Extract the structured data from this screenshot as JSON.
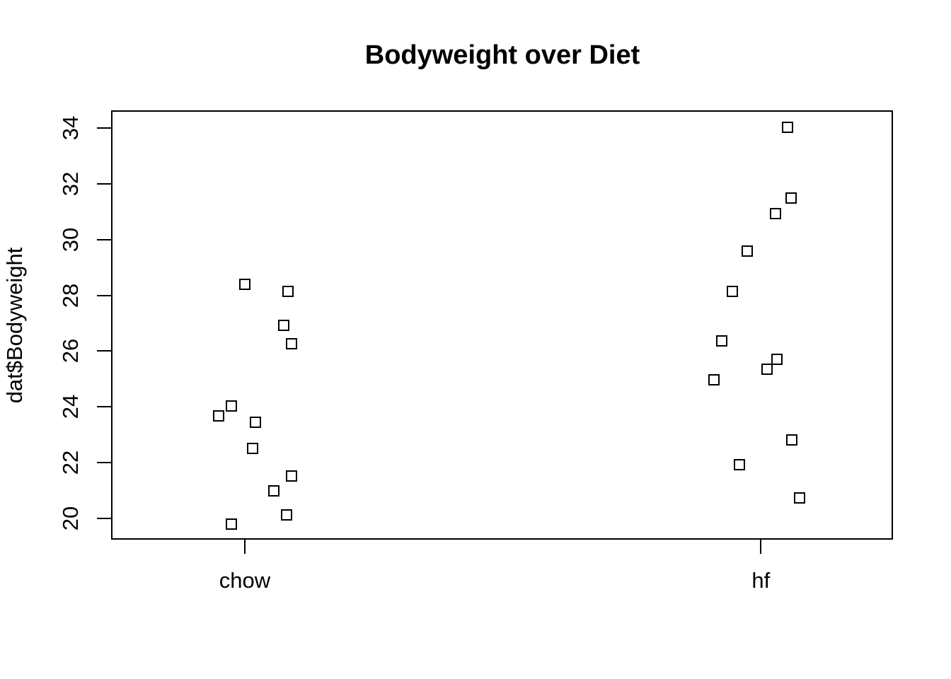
{
  "title": "Bodyweight over Diet",
  "colors": {
    "background": "#ffffff",
    "foreground": "#000000"
  },
  "chart_data": {
    "type": "scatter",
    "subtype": "stripchart-vertical-jitter",
    "title": "Bodyweight over Diet",
    "xlabel": "",
    "ylabel": "dat$Bodyweight",
    "categories": [
      "chow",
      "hf"
    ],
    "category_positions": [
      1,
      2
    ],
    "y_ticks": [
      20,
      22,
      24,
      26,
      28,
      30,
      32,
      34
    ],
    "xlim": [
      0.741,
      2.256
    ],
    "ylim": [
      19.23,
      34.64
    ],
    "grid": false,
    "legend": null,
    "marker": "open-square",
    "marker_color": "#000000",
    "series": [
      {
        "name": "chow",
        "position": 1,
        "values": [
          19.79,
          20.11,
          20.97,
          21.51,
          22.51,
          23.45,
          23.68,
          24.04,
          26.25,
          26.91,
          28.14,
          28.4
        ],
        "points": [
          {
            "y": 19.79,
            "jx": -0.0266
          },
          {
            "y": 20.11,
            "jx": 0.0812
          },
          {
            "y": 20.97,
            "jx": 0.0561
          },
          {
            "y": 21.51,
            "jx": 0.0908
          },
          {
            "y": 22.51,
            "jx": 0.0155
          },
          {
            "y": 23.45,
            "jx": 0.021
          },
          {
            "y": 23.68,
            "jx": -0.0507
          },
          {
            "y": 24.04,
            "jx": -0.026
          },
          {
            "y": 26.25,
            "jx": 0.0904
          },
          {
            "y": 26.91,
            "jx": 0.0757
          },
          {
            "y": 28.14,
            "jx": 0.0843
          },
          {
            "y": 28.4,
            "jx": -0.0005
          }
        ]
      },
      {
        "name": "hf",
        "position": 2,
        "values": [
          20.73,
          21.92,
          22.82,
          24.97,
          25.34,
          25.7,
          26.37,
          28.14,
          29.58,
          30.94,
          31.48,
          34.02
        ],
        "points": [
          {
            "y": 20.73,
            "jx": 0.0753
          },
          {
            "y": 21.92,
            "jx": -0.0415
          },
          {
            "y": 22.82,
            "jx": 0.0593
          },
          {
            "y": 24.97,
            "jx": -0.0904
          },
          {
            "y": 25.34,
            "jx": 0.0114
          },
          {
            "y": 25.7,
            "jx": 0.0315
          },
          {
            "y": 26.37,
            "jx": -0.0753
          },
          {
            "y": 28.14,
            "jx": -0.0557
          },
          {
            "y": 29.58,
            "jx": -0.0264
          },
          {
            "y": 30.94,
            "jx": 0.0283
          },
          {
            "y": 31.48,
            "jx": 0.0585
          },
          {
            "y": 34.02,
            "jx": 0.0511
          }
        ]
      }
    ]
  }
}
